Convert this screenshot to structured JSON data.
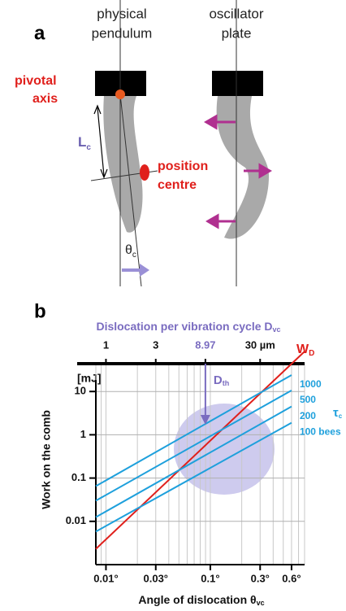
{
  "panel_a": {
    "label": "a",
    "left_title": [
      "physical",
      "pendulum"
    ],
    "right_title": [
      "oscillator",
      "plate"
    ],
    "pivotal_axis": [
      "pivotal",
      "axis"
    ],
    "position_centre": [
      "position",
      "centre"
    ],
    "length_label": {
      "main": "L",
      "sub": "c"
    },
    "angle_label": {
      "main": "θ",
      "sub": "c"
    }
  },
  "chart_data": {
    "type": "line",
    "panel_label": "b",
    "y_unit": "[mJ]",
    "ylabel": "Work on the comb",
    "xlabel": {
      "main": "Angle of dislocation θ",
      "sub": "vc"
    },
    "x2label": {
      "main": "Dislocation per vibration cycle  D",
      "sub": "vc"
    },
    "threshold_label": {
      "main": "D",
      "sub": "th"
    },
    "tau_label": {
      "main": "τ",
      "sub": "c"
    },
    "xscale": "log",
    "yscale": "log",
    "xlim": [
      0.008,
      0.8
    ],
    "x2lim": [
      0.8,
      80
    ],
    "ylim": [
      0.001,
      100
    ],
    "xticks": [
      {
        "value": 0.01,
        "label": "0.01°"
      },
      {
        "value": 0.03,
        "label": "0.03°"
      },
      {
        "value": 0.1,
        "label": "0.1°"
      },
      {
        "value": 0.3,
        "label": "0.3°"
      },
      {
        "value": 0.6,
        "label": "0.6°"
      }
    ],
    "x2ticks": [
      1,
      3,
      8.97,
      {
        "value": 30,
        "label": "30 µm"
      }
    ],
    "yticks": [
      0.01,
      0.1,
      1,
      10
    ],
    "grid": true,
    "series": [
      {
        "name": "W",
        "name_sub": "D",
        "color": "#e0201c",
        "x": [
          0.008,
          0.8
        ],
        "values": [
          0.0023,
          84
        ]
      },
      {
        "name": "1000",
        "color": "#1ea0dc",
        "x": [
          0.008,
          0.6
        ],
        "values": [
          0.065,
          24
        ]
      },
      {
        "name": "500",
        "color": "#1ea0dc",
        "x": [
          0.008,
          0.6
        ],
        "values": [
          0.03,
          10.6
        ]
      },
      {
        "name": "200",
        "color": "#1ea0dc",
        "x": [
          0.008,
          0.6
        ],
        "values": [
          0.0125,
          4.5
        ]
      },
      {
        "name": "100 bees",
        "color": "#1ea0dc",
        "x": [
          0.008,
          0.6
        ],
        "values": [
          0.0058,
          1.9
        ]
      }
    ]
  }
}
